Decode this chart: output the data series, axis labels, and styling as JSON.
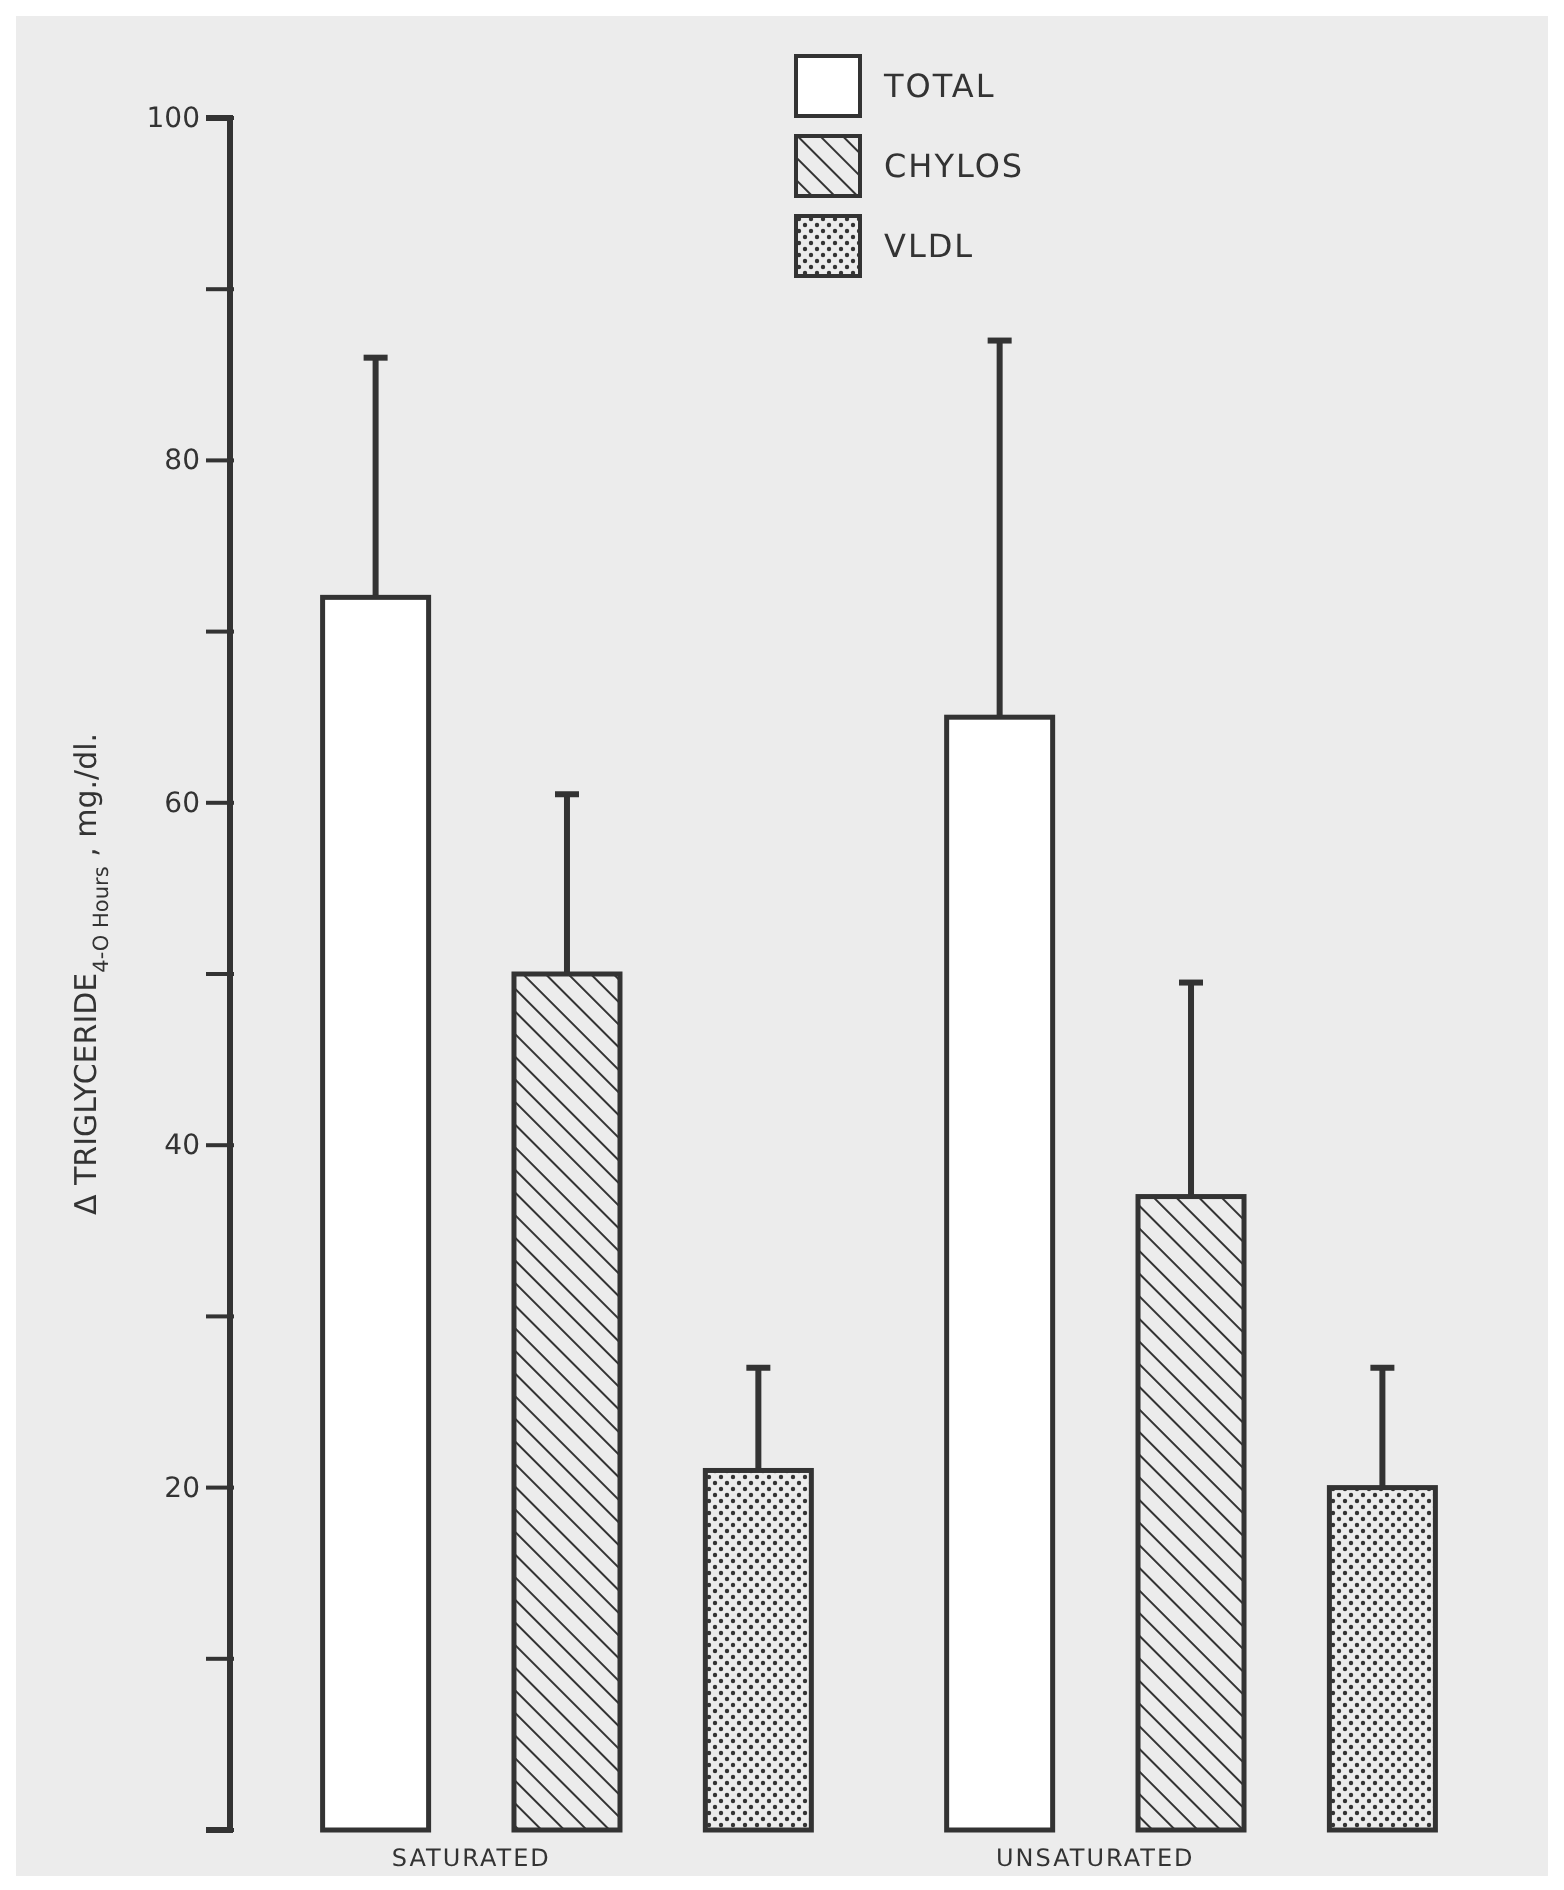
{
  "chart_data": {
    "type": "bar",
    "ylabel": "Δ TRIGLYCERIDE$_{4-O Hours}$ , mg./dl.",
    "categories": [
      "SATURATED",
      "UNSATURATED"
    ],
    "series": [
      {
        "name": "TOTAL",
        "color": "#333333",
        "values": [
          72,
          65
        ],
        "errors": [
          [
            72,
            86
          ],
          [
            65,
            87
          ]
        ]
      },
      {
        "name": "CHYLOS",
        "color": "#333333",
        "values": [
          50,
          37
        ],
        "errors": [
          [
            50,
            60.5
          ],
          [
            37,
            49.5
          ]
        ]
      },
      {
        "name": "VLDL",
        "color": "#333333",
        "values": [
          21,
          20
        ],
        "errors": [
          [
            21,
            27
          ],
          [
            20,
            27
          ]
        ]
      }
    ],
    "ylim": [
      0,
      100
    ],
    "yticks": [
      20,
      40,
      60,
      80,
      100
    ],
    "legend": "top",
    "grid": false
  }
}
